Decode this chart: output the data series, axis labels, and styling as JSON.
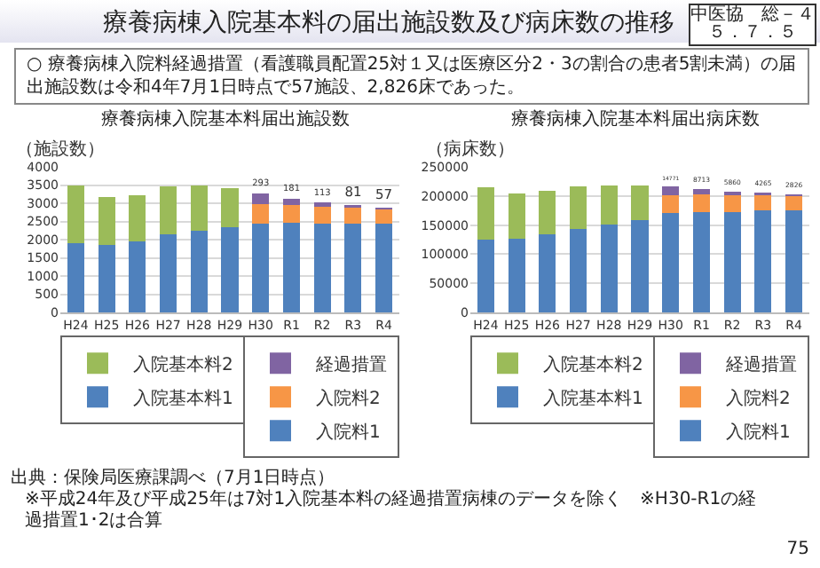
{
  "chart_data": [
    {
      "type": "other",
      "title": "療養病棟入院基本料の届出施設数及び病床数の推移",
      "annotations": [
        "○ 療養病棟入院料経過措置（看護職員配置25対１又は医療区分2・3の割合の患者5割未満）の届出施設数は令和4年7月1日時点で57施設、2,826床であった。",
        "中医協　総－４",
        "５．７．５",
        "出典：保険局医療課調べ（7月1日時点）",
        "※平成24年及び平成25年は7対1入院基本料の経過措置病棟のデータを除く　※H30-R1の経過措置1･2は合算",
        "75"
      ]
    },
    {
      "type": "bar",
      "title": "療養病棟入院基本料届出施設数",
      "ylabel": "（施設数）",
      "categories": [
        "H24",
        "H25",
        "H26",
        "H27",
        "H28",
        "H29",
        "H30",
        "R1",
        "R2",
        "R3",
        "R4"
      ],
      "stacked": true,
      "ylim": [
        0,
        4000
      ],
      "yticks": [
        0,
        500,
        1000,
        1500,
        2000,
        2500,
        3000,
        3500,
        4000
      ],
      "grid": "y",
      "legend": "bottom",
      "series": [
        {
          "name": "入院基本料1",
          "color": "#4f81bd",
          "values": [
            1900,
            1850,
            1950,
            2150,
            2250,
            2330,
            null,
            null,
            null,
            null,
            null
          ]
        },
        {
          "name": "入院基本料2",
          "color": "#9bbb59",
          "values": [
            1600,
            1310,
            1280,
            1310,
            1230,
            1090,
            null,
            null,
            null,
            null,
            null
          ]
        },
        {
          "name": "入院料1",
          "color": "#4f81bd",
          "values": [
            null,
            null,
            null,
            null,
            null,
            null,
            2440,
            2460,
            2440,
            2450,
            2450
          ]
        },
        {
          "name": "入院料2",
          "color": "#f79646",
          "values": [
            null,
            null,
            null,
            null,
            null,
            null,
            540,
            490,
            460,
            420,
            380
          ]
        },
        {
          "name": "経過措置",
          "color": "#8064a2",
          "values": [
            null,
            null,
            null,
            null,
            null,
            null,
            293,
            181,
            113,
            81,
            57
          ],
          "value_labels": [
            null,
            null,
            null,
            null,
            null,
            null,
            "293",
            "181",
            "113",
            "81",
            "57"
          ]
        }
      ]
    },
    {
      "type": "bar",
      "title": "療養病棟入院基本料届出病床数",
      "ylabel": "（病床数）",
      "categories": [
        "H24",
        "H25",
        "H26",
        "H27",
        "H28",
        "H29",
        "H30",
        "R1",
        "R2",
        "R3",
        "R4"
      ],
      "stacked": true,
      "ylim": [
        0,
        250000
      ],
      "yticks": [
        0,
        50000,
        100000,
        150000,
        200000,
        250000
      ],
      "grid": "y",
      "legend": "bottom",
      "series": [
        {
          "name": "入院基本料1",
          "color": "#4f81bd",
          "values": [
            125000,
            126000,
            134000,
            144000,
            151000,
            159000,
            null,
            null,
            null,
            null,
            null
          ]
        },
        {
          "name": "入院基本料2",
          "color": "#9bbb59",
          "values": [
            90000,
            78000,
            75000,
            72000,
            67000,
            59000,
            null,
            null,
            null,
            null,
            null
          ]
        },
        {
          "name": "入院料1",
          "color": "#4f81bd",
          "values": [
            null,
            null,
            null,
            null,
            null,
            null,
            170000,
            173000,
            173000,
            175000,
            175000
          ]
        },
        {
          "name": "入院料2",
          "color": "#f79646",
          "values": [
            null,
            null,
            null,
            null,
            null,
            null,
            31000,
            30000,
            28000,
            26000,
            25000
          ]
        },
        {
          "name": "経過措置",
          "color": "#8064a2",
          "values": [
            null,
            null,
            null,
            null,
            null,
            null,
            14771,
            8713,
            5860,
            4265,
            2826
          ],
          "value_labels": [
            null,
            null,
            null,
            null,
            null,
            null,
            "14771",
            "8713",
            "5860",
            "4265",
            "2826"
          ]
        }
      ]
    }
  ]
}
